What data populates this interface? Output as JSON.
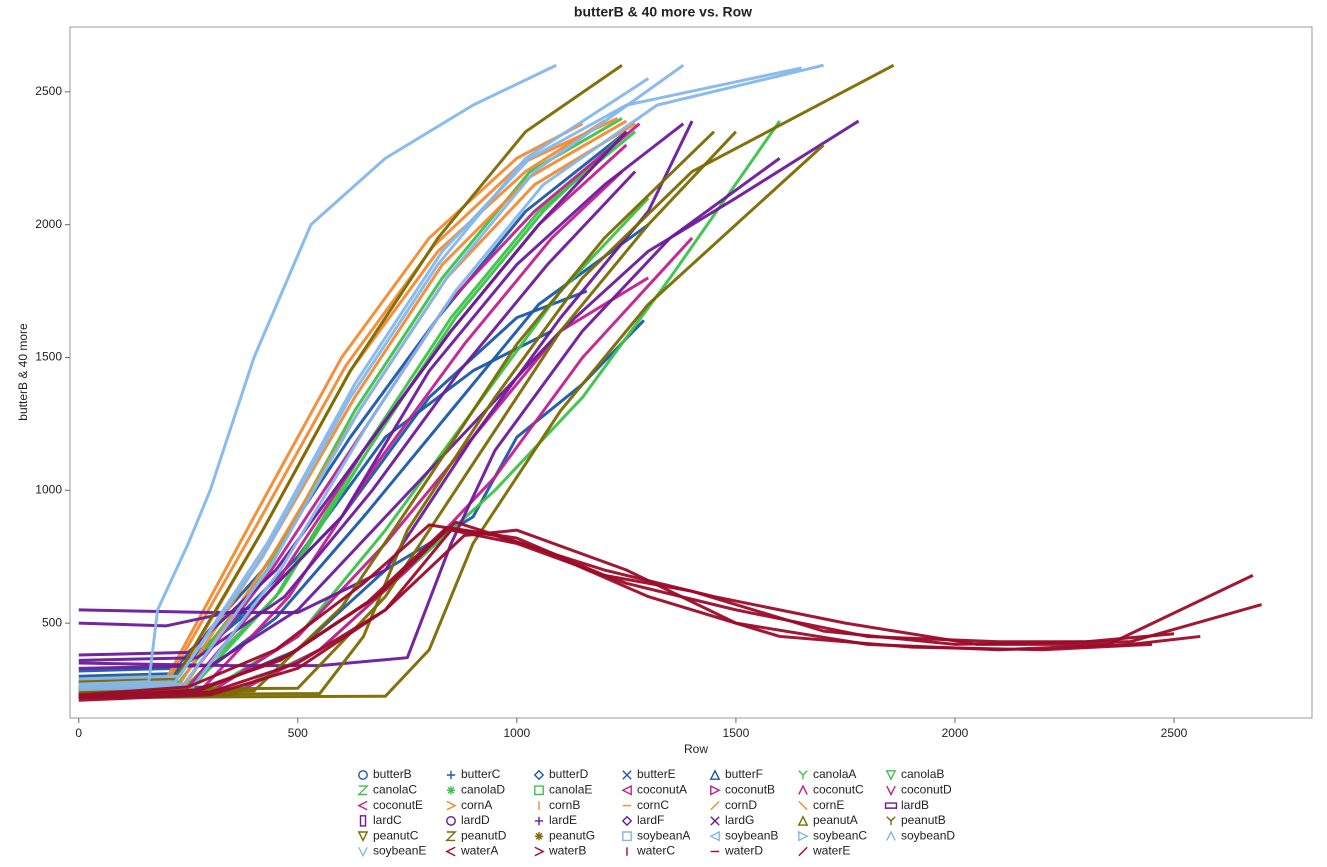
{
  "chart_data": {
    "type": "line",
    "title": "butterB & 40 more vs. Row",
    "x_label": "Row",
    "y_label": "butterB & 40 more",
    "xlim": [
      -20,
      2815
    ],
    "ylim": [
      143,
      2744
    ],
    "xticks": [
      0,
      500,
      1000,
      1500,
      2000,
      2500
    ],
    "yticks": [
      500,
      1000,
      1500,
      2000,
      2500
    ],
    "series": [
      {
        "name": "butterB",
        "color": "#1a5aa6",
        "marker": "circle",
        "x": [
          0,
          200,
          350,
          500,
          700,
          900,
          1080
        ],
        "values": [
          280,
          290,
          500,
          750,
          1200,
          1450,
          1600
        ]
      },
      {
        "name": "butterC",
        "color": "#1a5aa6",
        "marker": "plus",
        "x": [
          0,
          220,
          400,
          600,
          800,
          1000,
          1160
        ],
        "values": [
          300,
          310,
          560,
          900,
          1350,
          1650,
          1750
        ]
      },
      {
        "name": "butterD",
        "color": "#1a5aa6",
        "marker": "diamond",
        "x": [
          0,
          250,
          450,
          650,
          850,
          1050,
          1300
        ],
        "values": [
          260,
          270,
          520,
          900,
          1300,
          1700,
          2000
        ]
      },
      {
        "name": "butterE",
        "color": "#1a5aa6",
        "marker": "x",
        "x": [
          0,
          300,
          500,
          700,
          900,
          1000,
          1150,
          1290
        ],
        "values": [
          250,
          260,
          400,
          700,
          900,
          1200,
          1400,
          1640
        ]
      },
      {
        "name": "butterF",
        "color": "#1a5aa6",
        "marker": "triangle",
        "x": [
          0,
          220,
          420,
          620,
          820,
          1020,
          1250
        ],
        "values": [
          320,
          330,
          700,
          1200,
          1650,
          2050,
          2350
        ]
      },
      {
        "name": "canolaA",
        "color": "#3cc24a",
        "marker": "y",
        "x": [
          0,
          230,
          430,
          630,
          830,
          1030,
          1240
        ],
        "values": [
          270,
          280,
          700,
          1300,
          1800,
          2200,
          2400
        ]
      },
      {
        "name": "canolaB",
        "color": "#3cc24a",
        "marker": "tri-down",
        "x": [
          0,
          300,
          500,
          700,
          900,
          1100,
          1300
        ],
        "values": [
          240,
          250,
          450,
          850,
          1300,
          1750,
          2100
        ]
      },
      {
        "name": "canolaC",
        "color": "#3cc24a",
        "marker": "z",
        "x": [
          0,
          250,
          450,
          650,
          850,
          1050,
          1270
        ],
        "values": [
          260,
          270,
          600,
          1150,
          1650,
          2050,
          2350
        ]
      },
      {
        "name": "canolaD",
        "color": "#3cc24a",
        "marker": "star",
        "x": [
          0,
          350,
          550,
          750,
          950,
          1150,
          1350,
          1600
        ],
        "values": [
          230,
          240,
          400,
          700,
          1000,
          1350,
          1800,
          2390
        ]
      },
      {
        "name": "canolaE",
        "color": "#3cc24a",
        "marker": "square",
        "x": [
          0,
          260,
          460,
          660,
          860,
          1060,
          1250
        ],
        "values": [
          250,
          260,
          620,
          1150,
          1650,
          2050,
          2350
        ]
      },
      {
        "name": "coconutA",
        "color": "#c2208e",
        "marker": "tri-left",
        "x": [
          0,
          300,
          500,
          700,
          900,
          1100,
          1300
        ],
        "values": [
          230,
          240,
          450,
          800,
          1200,
          1600,
          1800
        ]
      },
      {
        "name": "coconutB",
        "color": "#c2208e",
        "marker": "tri-right",
        "x": [
          0,
          350,
          550,
          750,
          950,
          1150,
          1400
        ],
        "values": [
          220,
          230,
          400,
          700,
          1050,
          1500,
          1950
        ]
      },
      {
        "name": "coconutC",
        "color": "#c2208e",
        "marker": "caret",
        "x": [
          0,
          250,
          450,
          650,
          850,
          1050,
          1250
        ],
        "values": [
          250,
          260,
          650,
          1150,
          1600,
          2000,
          2300
        ]
      },
      {
        "name": "coconutD",
        "color": "#c2208e",
        "marker": "v",
        "x": [
          0,
          280,
          480,
          680,
          880,
          1080,
          1240
        ],
        "values": [
          240,
          250,
          600,
          1100,
          1550,
          1950,
          2200
        ]
      },
      {
        "name": "coconutE",
        "color": "#c2208e",
        "marker": "less",
        "x": [
          0,
          240,
          440,
          640,
          840,
          1040,
          1280
        ],
        "values": [
          260,
          270,
          700,
          1200,
          1700,
          2050,
          2380
        ]
      },
      {
        "name": "cornA",
        "color": "#f28a30",
        "marker": "greater",
        "x": [
          0,
          200,
          400,
          600,
          800,
          1000,
          1150
        ],
        "values": [
          280,
          290,
          900,
          1500,
          1950,
          2250,
          2380
        ]
      },
      {
        "name": "cornB",
        "color": "#f28a30",
        "marker": "vbar",
        "x": [
          0,
          220,
          420,
          620,
          820,
          1020,
          1200
        ],
        "values": [
          270,
          280,
          850,
          1450,
          1900,
          2200,
          2390
        ]
      },
      {
        "name": "cornC",
        "color": "#f28a30",
        "marker": "hline",
        "x": [
          0,
          210,
          410,
          610,
          810,
          1010,
          1230
        ],
        "values": [
          290,
          300,
          880,
          1470,
          1920,
          2230,
          2400
        ]
      },
      {
        "name": "cornD",
        "color": "#f28a30",
        "marker": "slash",
        "x": [
          0,
          230,
          430,
          630,
          830,
          1030,
          1250
        ],
        "values": [
          260,
          270,
          780,
          1350,
          1850,
          2180,
          2390
        ]
      },
      {
        "name": "cornE",
        "color": "#f28a30",
        "marker": "backslash",
        "x": [
          0,
          240,
          440,
          640,
          840,
          1040,
          1270
        ],
        "values": [
          250,
          260,
          750,
          1300,
          1800,
          2150,
          2380
        ]
      },
      {
        "name": "lardB",
        "color": "#6c1a9a",
        "marker": "rect-wide",
        "x": [
          0,
          300,
          500,
          700,
          900,
          1100,
          1300,
          1400
        ],
        "values": [
          550,
          540,
          540,
          700,
          1200,
          1650,
          2050,
          2390
        ]
      },
      {
        "name": "lardC",
        "color": "#6c1a9a",
        "marker": "rect-tall",
        "x": [
          0,
          200,
          400,
          600,
          800,
          1000,
          1200,
          1380
        ],
        "values": [
          500,
          490,
          560,
          900,
          1450,
          1850,
          2150,
          2380
        ]
      },
      {
        "name": "lardD",
        "color": "#6c1a9a",
        "marker": "circle",
        "x": [
          0,
          350,
          550,
          750,
          850,
          950,
          1150,
          1350,
          1600
        ],
        "values": [
          350,
          340,
          340,
          370,
          800,
          1150,
          1600,
          1950,
          2250
        ]
      },
      {
        "name": "lardE",
        "color": "#6c1a9a",
        "marker": "plus",
        "x": [
          0,
          250,
          450,
          650,
          850,
          1050,
          1250
        ],
        "values": [
          380,
          390,
          700,
          1150,
          1600,
          2000,
          2350
        ]
      },
      {
        "name": "lardF",
        "color": "#6c1a9a",
        "marker": "diamond",
        "x": [
          0,
          300,
          500,
          700,
          900,
          1100,
          1300,
          1500,
          1780
        ],
        "values": [
          330,
          340,
          550,
          900,
          1250,
          1600,
          1900,
          2100,
          2390
        ]
      },
      {
        "name": "lardG",
        "color": "#6c1a9a",
        "marker": "x",
        "x": [
          0,
          270,
          470,
          670,
          870,
          1070,
          1270
        ],
        "values": [
          360,
          370,
          600,
          1000,
          1450,
          1850,
          2200
        ]
      },
      {
        "name": "peanutA",
        "color": "#7a6a00",
        "marker": "triangle",
        "x": [
          0,
          700,
          800,
          900,
          1100,
          1300,
          1500,
          1700
        ],
        "values": [
          220,
          225,
          400,
          800,
          1300,
          1700,
          2000,
          2300
        ]
      },
      {
        "name": "peanutB",
        "color": "#7a6a00",
        "marker": "y",
        "x": [
          0,
          550,
          650,
          750,
          950,
          1150,
          1400,
          1860
        ],
        "values": [
          230,
          235,
          450,
          850,
          1350,
          1800,
          2200,
          2600
        ]
      },
      {
        "name": "peanutC",
        "color": "#7a6a00",
        "marker": "tri-down",
        "x": [
          0,
          400,
          600,
          800,
          1000,
          1200,
          1450
        ],
        "values": [
          240,
          245,
          560,
          1050,
          1550,
          1950,
          2350
        ]
      },
      {
        "name": "peanutD",
        "color": "#7a6a00",
        "marker": "z",
        "x": [
          0,
          220,
          420,
          620,
          820,
          1020,
          1240
        ],
        "values": [
          280,
          290,
          850,
          1450,
          1950,
          2350,
          2600
        ]
      },
      {
        "name": "peanutG",
        "color": "#7a6a00",
        "marker": "star",
        "x": [
          0,
          500,
          700,
          900,
          1100,
          1300,
          1500
        ],
        "values": [
          250,
          255,
          600,
          1100,
          1600,
          2000,
          2350
        ]
      },
      {
        "name": "soybeanA",
        "color": "#84b7ea",
        "marker": "square",
        "x": [
          0,
          220,
          420,
          620,
          820,
          1020,
          1300
        ],
        "values": [
          270,
          280,
          750,
          1350,
          1850,
          2250,
          2550
        ]
      },
      {
        "name": "soybeanB",
        "color": "#84b7ea",
        "marker": "tri-left",
        "x": [
          0,
          240,
          440,
          640,
          840,
          1040,
          1380
        ],
        "values": [
          260,
          270,
          720,
          1300,
          1800,
          2200,
          2600
        ]
      },
      {
        "name": "soybeanC",
        "color": "#84b7ea",
        "marker": "tri-right",
        "x": [
          0,
          260,
          460,
          660,
          860,
          1060,
          1320,
          1700
        ],
        "values": [
          250,
          260,
          700,
          1250,
          1750,
          2150,
          2450,
          2600
        ]
      },
      {
        "name": "soybeanD",
        "color": "#84b7ea",
        "marker": "caret",
        "x": [
          0,
          230,
          430,
          630,
          830,
          1030,
          1250,
          1650
        ],
        "values": [
          290,
          300,
          800,
          1400,
          1900,
          2250,
          2450,
          2590
        ]
      },
      {
        "name": "soybeanE",
        "color": "#84b7ea",
        "marker": "v",
        "x": [
          0,
          160,
          180,
          250,
          300,
          400,
          530,
          700,
          900,
          1090
        ],
        "values": [
          270,
          280,
          550,
          800,
          1000,
          1500,
          2000,
          2250,
          2450,
          2600
        ]
      },
      {
        "name": "waterA",
        "color": "#9c0c2a",
        "marker": "less",
        "x": [
          0,
          300,
          500,
          700,
          850,
          1000,
          1250,
          1500,
          1800,
          2100,
          2400,
          2700
        ],
        "values": [
          220,
          240,
          350,
          550,
          850,
          800,
          650,
          550,
          450,
          430,
          430,
          570
        ]
      },
      {
        "name": "waterB",
        "color": "#9c0c2a",
        "marker": "greater",
        "x": [
          0,
          250,
          450,
          650,
          800,
          950,
          1200,
          1450,
          1750,
          2050,
          2350,
          2680
        ],
        "values": [
          230,
          260,
          400,
          650,
          870,
          830,
          700,
          600,
          500,
          420,
          420,
          680
        ]
      },
      {
        "name": "waterC",
        "color": "#9c0c2a",
        "marker": "vbar",
        "x": [
          0,
          300,
          500,
          700,
          880,
          1000,
          1250,
          1500,
          1800,
          2100,
          2400,
          2560
        ],
        "values": [
          210,
          230,
          330,
          550,
          830,
          850,
          700,
          500,
          420,
          400,
          420,
          450
        ]
      },
      {
        "name": "waterD",
        "color": "#9c0c2a",
        "marker": "hline",
        "x": [
          0,
          280,
          480,
          680,
          860,
          1050,
          1300,
          1600,
          1900,
          2200,
          2450
        ],
        "values": [
          220,
          250,
          380,
          600,
          880,
          780,
          600,
          450,
          410,
          400,
          420
        ]
      },
      {
        "name": "waterE",
        "color": "#9c0c2a",
        "marker": "slash",
        "x": [
          0,
          260,
          460,
          660,
          840,
          1000,
          1200,
          1400,
          1700,
          2000,
          2300,
          2500
        ],
        "values": [
          225,
          245,
          360,
          580,
          860,
          820,
          680,
          620,
          470,
          420,
          430,
          460
        ]
      }
    ]
  }
}
